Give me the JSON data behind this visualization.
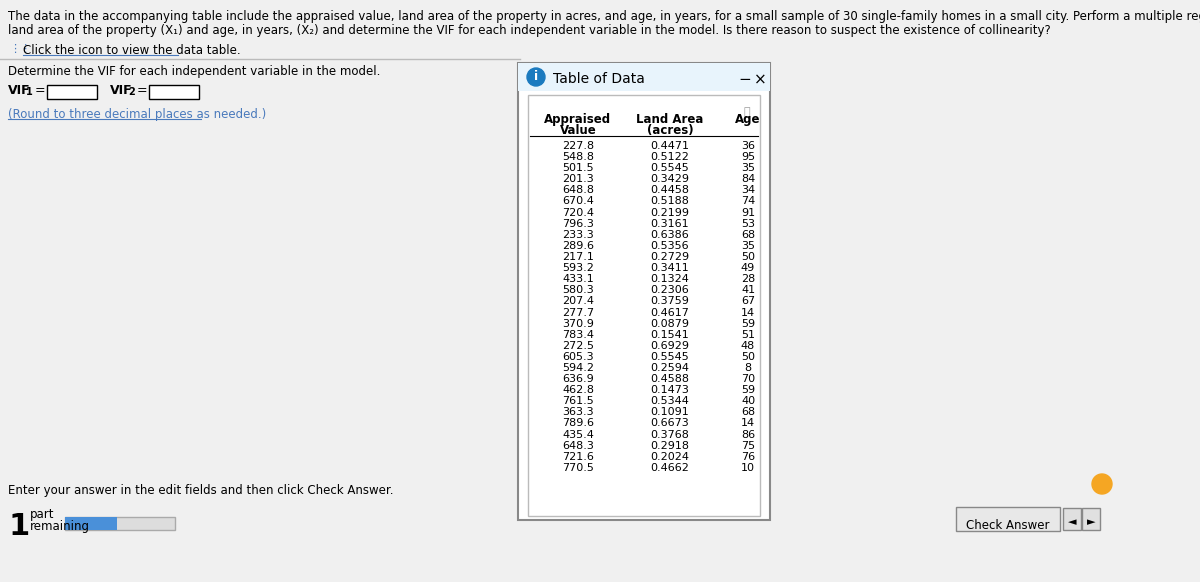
{
  "title_line1": "The data in the accompanying table include the appraised value, land area of the property in acres, and age, in years, for a small sample of 30 single-family homes in a small city. Perform a multiple regression analysis to predict appraised value based on",
  "title_line2": "land area of the property (X₁) and age, in years, (X₂) and determine the VIF for each independent variable in the model. Is there reason to suspect the existence of collinearity?",
  "click_text": "Click the icon to view the data table.",
  "determine_text": "Determine the VIF for each independent variable in the model.",
  "round_text": "(Round to three decimal places as needed.)",
  "enter_text": "Enter your answer in the edit fields and then click Check Answer.",
  "table_title": "Table of Data",
  "appraised_values": [
    227.8,
    548.8,
    501.5,
    201.3,
    648.8,
    670.4,
    720.4,
    796.3,
    233.3,
    289.6,
    217.1,
    593.2,
    433.1,
    580.3,
    207.4,
    277.7,
    370.9,
    783.4,
    272.5,
    605.3,
    594.2,
    636.9,
    462.8,
    761.5,
    363.3,
    789.6,
    435.4,
    648.3,
    721.6,
    770.5
  ],
  "land_area": [
    0.4471,
    0.5122,
    0.5545,
    0.3429,
    0.4458,
    0.5188,
    0.2199,
    0.3161,
    0.6386,
    0.5356,
    0.2729,
    0.3411,
    0.1324,
    0.2306,
    0.3759,
    0.4617,
    0.0879,
    0.1541,
    0.6929,
    0.5545,
    0.2594,
    0.4588,
    0.1473,
    0.5344,
    0.1091,
    0.6673,
    0.3768,
    0.2918,
    0.2024,
    0.4662
  ],
  "age": [
    36,
    95,
    35,
    84,
    34,
    74,
    91,
    53,
    68,
    35,
    50,
    49,
    28,
    41,
    67,
    14,
    59,
    51,
    48,
    50,
    8,
    70,
    59,
    40,
    68,
    14,
    86,
    75,
    76,
    10
  ],
  "bg_color": "#f0f0f0",
  "info_icon_color": "#1a7abf",
  "title_bar_color": "#e8f4fc",
  "grid_icon_color": "#4a7abc",
  "underline_color": "#4a7abc"
}
